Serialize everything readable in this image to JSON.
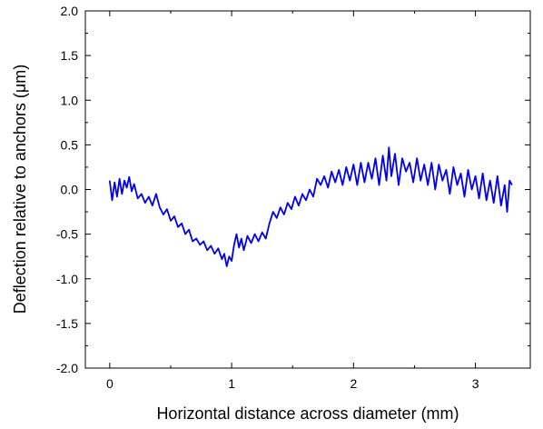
{
  "chart_data": {
    "type": "line",
    "title": "",
    "xlabel": "Horizontal distance across diameter (mm)",
    "ylabel": "Deflection relative to anchors (μm)",
    "xlim": [
      -0.2,
      3.45
    ],
    "ylim": [
      -2.0,
      2.0
    ],
    "xticks": [
      0,
      1,
      2,
      3
    ],
    "xtick_labels": [
      "0",
      "1",
      "2",
      "3"
    ],
    "yticks": [
      -2.0,
      -1.5,
      -1.0,
      -0.5,
      0.0,
      0.5,
      1.0,
      1.5,
      2.0
    ],
    "ytick_labels": [
      "-2.0",
      "-1.5",
      "-1.0",
      "-0.5",
      "0.0",
      "0.5",
      "1.0",
      "1.5",
      "2.0"
    ],
    "grid": false,
    "legend": "none",
    "series": [
      {
        "color": "#0000ee",
        "x": [
          0.0,
          0.02,
          0.04,
          0.06,
          0.08,
          0.1,
          0.12,
          0.14,
          0.16,
          0.18,
          0.2,
          0.23,
          0.26,
          0.29,
          0.32,
          0.35,
          0.38,
          0.41,
          0.44,
          0.47,
          0.5,
          0.53,
          0.56,
          0.59,
          0.62,
          0.65,
          0.68,
          0.71,
          0.74,
          0.77,
          0.8,
          0.83,
          0.86,
          0.89,
          0.92,
          0.94,
          0.96,
          0.98,
          1.0,
          1.02,
          1.04,
          1.06,
          1.08,
          1.1,
          1.13,
          1.16,
          1.19,
          1.22,
          1.25,
          1.28,
          1.31,
          1.34,
          1.37,
          1.4,
          1.43,
          1.46,
          1.49,
          1.52,
          1.55,
          1.58,
          1.61,
          1.64,
          1.67,
          1.7,
          1.73,
          1.76,
          1.79,
          1.82,
          1.85,
          1.88,
          1.91,
          1.94,
          1.97,
          2.0,
          2.03,
          2.06,
          2.09,
          2.12,
          2.15,
          2.18,
          2.21,
          2.24,
          2.27,
          2.29,
          2.31,
          2.34,
          2.37,
          2.4,
          2.43,
          2.46,
          2.49,
          2.52,
          2.55,
          2.58,
          2.61,
          2.64,
          2.67,
          2.7,
          2.73,
          2.76,
          2.79,
          2.82,
          2.85,
          2.88,
          2.91,
          2.94,
          2.97,
          3.0,
          3.03,
          3.06,
          3.09,
          3.12,
          3.15,
          3.18,
          3.21,
          3.24,
          3.26,
          3.28,
          3.3
        ],
        "y": [
          0.1,
          -0.12,
          0.08,
          -0.08,
          0.12,
          -0.05,
          0.1,
          0.02,
          0.14,
          -0.02,
          0.06,
          -0.1,
          -0.05,
          -0.15,
          -0.08,
          -0.18,
          -0.05,
          -0.2,
          -0.28,
          -0.22,
          -0.35,
          -0.3,
          -0.42,
          -0.38,
          -0.5,
          -0.45,
          -0.58,
          -0.55,
          -0.62,
          -0.58,
          -0.68,
          -0.63,
          -0.72,
          -0.66,
          -0.78,
          -0.72,
          -0.86,
          -0.75,
          -0.8,
          -0.62,
          -0.5,
          -0.65,
          -0.55,
          -0.68,
          -0.52,
          -0.6,
          -0.5,
          -0.58,
          -0.48,
          -0.55,
          -0.38,
          -0.25,
          -0.32,
          -0.2,
          -0.28,
          -0.15,
          -0.22,
          -0.08,
          -0.18,
          -0.05,
          -0.12,
          0.0,
          -0.08,
          0.12,
          0.05,
          0.15,
          0.02,
          0.2,
          0.08,
          0.22,
          0.05,
          0.25,
          0.1,
          0.28,
          0.05,
          0.3,
          0.08,
          0.3,
          0.12,
          0.35,
          0.05,
          0.38,
          0.1,
          0.47,
          0.15,
          0.4,
          0.05,
          0.35,
          0.2,
          0.3,
          0.08,
          0.35,
          0.1,
          0.28,
          0.05,
          0.3,
          0.0,
          0.28,
          0.1,
          0.22,
          -0.05,
          0.25,
          0.05,
          0.18,
          -0.08,
          0.22,
          0.0,
          0.15,
          -0.1,
          0.18,
          -0.12,
          0.1,
          -0.15,
          0.15,
          -0.18,
          0.05,
          -0.25,
          0.1,
          0.05
        ]
      }
    ]
  }
}
